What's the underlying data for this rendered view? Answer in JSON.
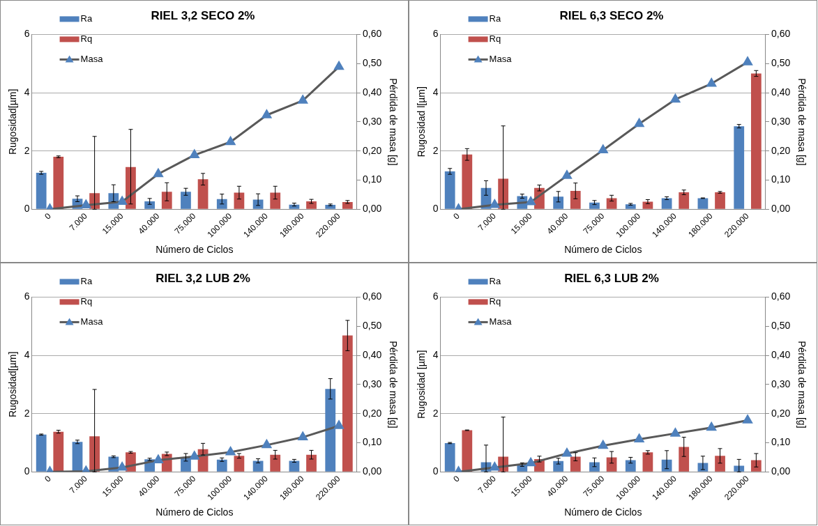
{
  "chart_data": [
    {
      "type": "bar",
      "title": "RIEL 3,2 SECO 2%",
      "xlabel": "Número de Ciclos",
      "ylabel": "Rugosidad[µm]",
      "y2label": "Pérdida de masa [g]",
      "categories": [
        "0",
        "7.000",
        "15.000",
        "40.000",
        "75.000",
        "100.000",
        "140.000",
        "180.000",
        "220.000"
      ],
      "ylim": [
        0,
        6
      ],
      "yticks": [
        0,
        2,
        4,
        6
      ],
      "y2lim": [
        0,
        0.6
      ],
      "y2ticks": [
        {
          "value": 0,
          "label": "0,00"
        },
        {
          "value": 0.1,
          "label": "0,10"
        },
        {
          "value": 0.2,
          "label": "0,20"
        },
        {
          "value": 0.3,
          "label": "0,30"
        },
        {
          "value": 0.4,
          "label": "0,40"
        },
        {
          "value": 0.5,
          "label": "0,50"
        },
        {
          "value": 0.6,
          "label": "0,60"
        }
      ],
      "grid": "y",
      "legend": "top left",
      "marker": "triangle",
      "series": [
        {
          "name": "Ra",
          "color": "#4f81bd",
          "values": [
            1.25,
            0.36,
            0.55,
            0.27,
            0.6,
            0.35,
            0.33,
            0.16,
            0.15
          ],
          "errors": [
            0.05,
            0.1,
            0.29,
            0.1,
            0.12,
            0.17,
            0.2,
            0.05,
            0.03
          ]
        },
        {
          "name": "Rq",
          "color": "#c0504d",
          "values": [
            1.8,
            0.55,
            1.45,
            0.6,
            1.03,
            0.57,
            0.57,
            0.27,
            0.25
          ],
          "errors": [
            0.03,
            [
              0,
              2.5
            ],
            [
              0.18,
              2.74
            ],
            0.31,
            0.2,
            0.22,
            0.22,
            0.07,
            0.05
          ]
        },
        {
          "name": "Masa",
          "type": "line",
          "axis": "y2",
          "color": "#595959",
          "values": [
            0,
            0.014,
            0.026,
            0.121,
            0.186,
            0.231,
            0.323,
            0.373,
            0.489
          ]
        }
      ]
    },
    {
      "type": "bar",
      "title": "RIEL 6,3 SECO 2%",
      "xlabel": "Número de Ciclos",
      "ylabel": "Rugosidad l[µm]",
      "y2label": "Pérdida de masa [g]",
      "categories": [
        "0",
        "7.000",
        "15.000",
        "40.000",
        "75.000",
        "100.000",
        "140.000",
        "180.000",
        "220.000"
      ],
      "ylim": [
        0,
        6
      ],
      "yticks": [
        0,
        2,
        4,
        6
      ],
      "y2lim": [
        0,
        0.6
      ],
      "y2ticks": [
        {
          "value": 0,
          "label": "0,00"
        },
        {
          "value": 0.1,
          "label": "0,10"
        },
        {
          "value": 0.2,
          "label": "0,20"
        },
        {
          "value": 0.3,
          "label": "0,30"
        },
        {
          "value": 0.4,
          "label": "0,40"
        },
        {
          "value": 0.5,
          "label": "0,50"
        },
        {
          "value": 0.6,
          "label": "0,60"
        }
      ],
      "grid": "y",
      "legend": "top left",
      "marker": "triangle",
      "series": [
        {
          "name": "Ra",
          "color": "#4f81bd",
          "values": [
            1.3,
            0.73,
            0.45,
            0.43,
            0.23,
            0.17,
            0.38,
            0.38,
            2.85
          ],
          "errors": [
            0.1,
            0.25,
            0.07,
            0.18,
            0.07,
            0.03,
            0.05,
            0.01,
            0.06
          ]
        },
        {
          "name": "Rq",
          "color": "#c0504d",
          "values": [
            1.88,
            1.05,
            0.73,
            0.63,
            0.38,
            0.26,
            0.58,
            0.58,
            4.66
          ],
          "errors": [
            0.2,
            [
              0,
              2.86
            ],
            0.1,
            0.27,
            0.1,
            0.07,
            0.08,
            0.03,
            0.1
          ]
        },
        {
          "name": "Masa",
          "type": "line",
          "axis": "y2",
          "color": "#595959",
          "values": [
            0,
            0.015,
            0.025,
            0.115,
            0.203,
            0.293,
            0.377,
            0.431,
            0.505
          ]
        }
      ]
    },
    {
      "type": "bar",
      "title": "RIEL 3,2 LUB 2%",
      "xlabel": "Número de Ciclos",
      "ylabel": "Rugosidad[µm]",
      "y2label": "Pérdida de masa [g]",
      "categories": [
        "0",
        "7.000",
        "15.000",
        "40.000",
        "75.000",
        "100.000",
        "140.000",
        "180.000",
        "220.000"
      ],
      "ylim": [
        0,
        6
      ],
      "yticks": [
        0,
        2,
        4,
        6
      ],
      "y2lim": [
        0,
        0.6
      ],
      "y2ticks": [
        {
          "value": 0,
          "label": "0,00"
        },
        {
          "value": 0.1,
          "label": "0,10"
        },
        {
          "value": 0.2,
          "label": "0,20"
        },
        {
          "value": 0.3,
          "label": "0,30"
        },
        {
          "value": 0.4,
          "label": "0,40"
        },
        {
          "value": 0.5,
          "label": "0,50"
        },
        {
          "value": 0.6,
          "label": "0,60"
        }
      ],
      "grid": "y",
      "legend": "top left",
      "marker": "triangle",
      "series": [
        {
          "name": "Ra",
          "color": "#4f81bd",
          "values": [
            1.28,
            1.03,
            0.52,
            0.43,
            0.5,
            0.42,
            0.38,
            0.38,
            2.85
          ],
          "errors": [
            0.02,
            0.06,
            0.03,
            0.04,
            0.13,
            0.06,
            0.07,
            0.05,
            0.35
          ]
        },
        {
          "name": "Rq",
          "color": "#c0504d",
          "values": [
            1.38,
            1.22,
            0.67,
            0.62,
            0.78,
            0.55,
            0.59,
            0.59,
            4.68
          ],
          "errors": [
            0.05,
            [
              0,
              2.83
            ],
            0.03,
            0.06,
            0.2,
            0.08,
            0.15,
            0.15,
            0.52
          ]
        },
        {
          "name": "Masa",
          "type": "line",
          "axis": "y2",
          "color": "#595959",
          "values": [
            0,
            0.002,
            0.015,
            0.04,
            0.053,
            0.068,
            0.092,
            0.119,
            0.158
          ]
        }
      ]
    },
    {
      "type": "bar",
      "title": "RIEL 6,3 LUB 2%",
      "xlabel": "Número de Ciclos",
      "ylabel": "Rugosidad [µm]",
      "y2label": "Pérdida de masa [g]",
      "categories": [
        "0",
        "7.000",
        "15.000",
        "40.000",
        "75.000",
        "100.000",
        "140.000",
        "180.000",
        "220.000"
      ],
      "ylim": [
        0,
        6
      ],
      "yticks": [
        0,
        2,
        4,
        6
      ],
      "y2lim": [
        0,
        0.6
      ],
      "y2ticks": [
        {
          "value": 0,
          "label": "0,00"
        },
        {
          "value": 0.1,
          "label": "0,10"
        },
        {
          "value": 0.2,
          "label": "0,20"
        },
        {
          "value": 0.3,
          "label": "0,30"
        },
        {
          "value": 0.4,
          "label": "0,40"
        },
        {
          "value": 0.5,
          "label": "0,50"
        },
        {
          "value": 0.6,
          "label": "0,60"
        }
      ],
      "grid": "y",
      "legend": "top left",
      "marker": "triangle",
      "series": [
        {
          "name": "Ra",
          "color": "#4f81bd",
          "values": [
            0.99,
            0.33,
            0.25,
            0.37,
            0.33,
            0.4,
            0.42,
            0.31,
            0.21
          ],
          "errors": [
            0.02,
            [
              0,
              0.92
            ],
            0.06,
            0.1,
            0.15,
            0.1,
            0.31,
            0.23,
            [
              0,
              0.43
            ]
          ]
        },
        {
          "name": "Rq",
          "color": "#c0504d",
          "values": [
            1.43,
            0.52,
            0.44,
            0.52,
            0.5,
            0.67,
            0.86,
            0.55,
            0.4
          ],
          "errors": [
            0.01,
            [
              0,
              1.88
            ],
            0.1,
            0.14,
            0.2,
            0.06,
            0.33,
            0.25,
            0.23
          ]
        },
        {
          "name": "Masa",
          "type": "line",
          "axis": "y2",
          "color": "#595959",
          "values": [
            0,
            0.015,
            0.03,
            0.063,
            0.09,
            0.112,
            0.132,
            0.152,
            0.177
          ]
        }
      ]
    }
  ]
}
